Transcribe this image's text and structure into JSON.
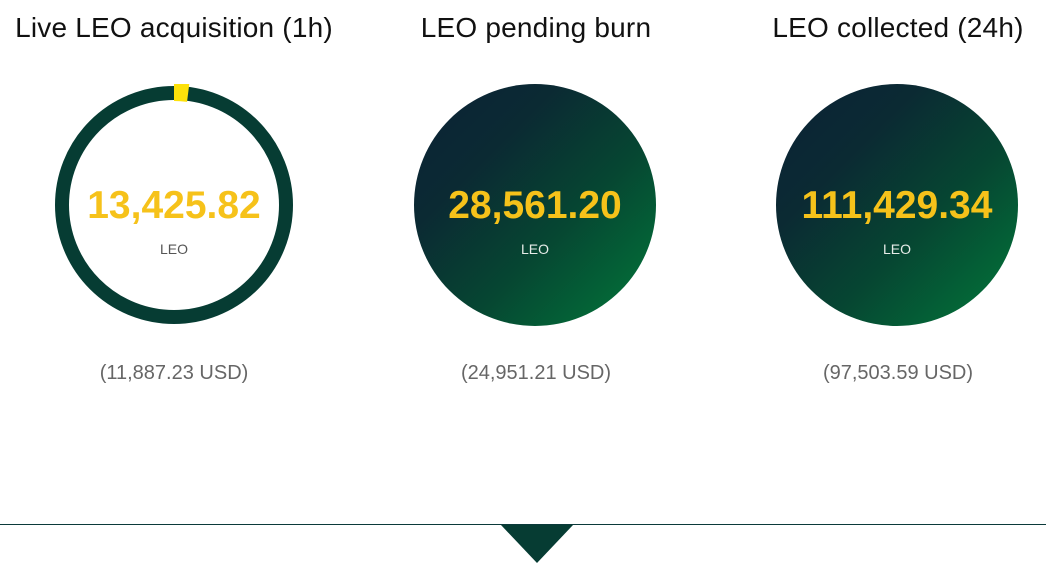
{
  "panels": [
    {
      "title": "Live LEO acquisition (1h)",
      "value": "13,425.82",
      "unit": "LEO",
      "usd": "(11,887.23 USD)",
      "style": "ring",
      "progress": 0.02
    },
    {
      "title": "LEO pending burn",
      "value": "28,561.20",
      "unit": "LEO",
      "usd": "(24,951.21 USD)",
      "style": "filled"
    },
    {
      "title": "LEO collected (24h)",
      "value": "111,429.34",
      "unit": "LEO",
      "usd": "(97,503.59 USD)",
      "style": "filled"
    }
  ],
  "icons": {
    "scroll": "chevron-down-icon"
  },
  "colors": {
    "ring": "#063c33",
    "accent": "#fde10a",
    "value": "#f6c21a",
    "gradient_start": "#0b2236",
    "gradient_end": "#02793a"
  }
}
